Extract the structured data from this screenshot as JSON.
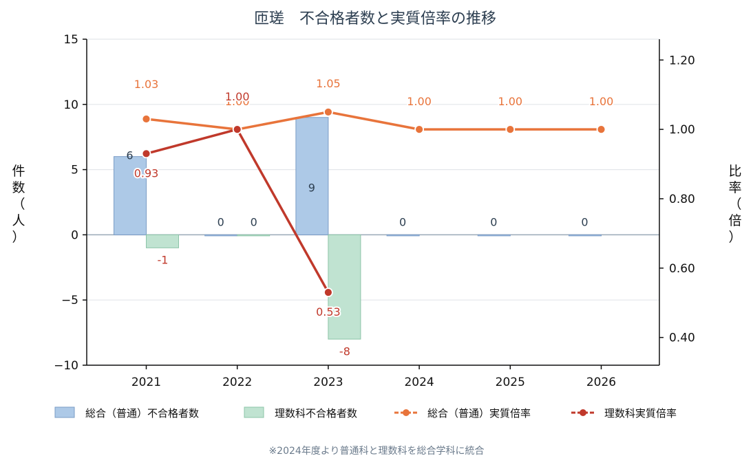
{
  "chart_data": {
    "type": "bar+line",
    "title": "匝瑳　不合格者数と実質倍率の推移",
    "categories": [
      "2021",
      "2022",
      "2023",
      "2024",
      "2025",
      "2026"
    ],
    "y_left": {
      "label": "件数（人）",
      "ylim": [
        -10,
        15
      ],
      "ticks": [
        15,
        10,
        5,
        0,
        -5,
        -10
      ],
      "tick_labels": [
        "15",
        "10",
        "5",
        "0",
        "−5",
        "−10"
      ]
    },
    "y_right": {
      "label": "比率（倍）",
      "ylim": [
        0.32,
        1.26
      ],
      "ticks": [
        1.2,
        1.0,
        0.8,
        0.6,
        0.4
      ],
      "tick_labels": [
        "1.20",
        "1.00",
        "0.80",
        "0.60",
        "0.40"
      ]
    },
    "bar_series": [
      {
        "name": "総合（普通）不合格者数",
        "color": "#adc9e7",
        "edge": "#7a9cc6",
        "values": [
          6,
          0,
          9,
          0,
          0,
          0
        ],
        "labels": [
          "6",
          "0",
          "9",
          "0",
          "0",
          "0"
        ]
      },
      {
        "name": "理数科不合格者数",
        "color": "#c0e3d1",
        "edge": "#8cc4a8",
        "values": [
          -1,
          0,
          -8,
          null,
          null,
          null
        ],
        "labels": [
          "-1",
          "0",
          "-8",
          "",
          "",
          ""
        ]
      }
    ],
    "line_series": [
      {
        "name": "総合（普通）実質倍率",
        "color": "#e8743b",
        "values": [
          1.03,
          1.0,
          1.05,
          1.0,
          1.0,
          1.0
        ],
        "labels": [
          "1.03",
          "1.00",
          "1.05",
          "1.00",
          "1.00",
          "1.00"
        ]
      },
      {
        "name": "理数科実質倍率",
        "color": "#c0392b",
        "values": [
          0.93,
          1.0,
          0.53,
          null,
          null,
          null
        ],
        "labels": [
          "0.93",
          "1.00",
          "0.53",
          "",
          "",
          ""
        ]
      }
    ],
    "grid": true,
    "legend_position": "bottom",
    "note": "※2024年度より普通科と理数科を総合学科に統合"
  }
}
